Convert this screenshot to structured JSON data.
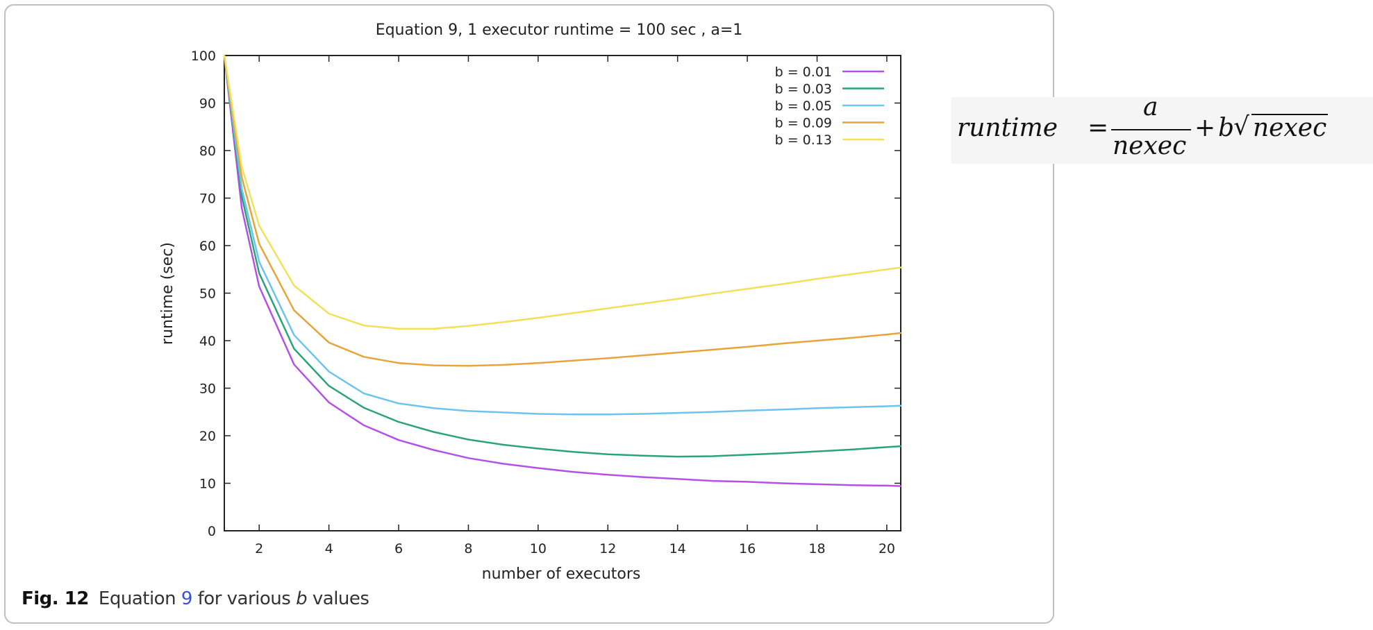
{
  "chart_data": {
    "type": "line",
    "title": "Equation 9, 1 executor runtime = 100 sec , a=1",
    "xlabel": "number of executors",
    "ylabel": "runtime (sec)",
    "xlim": [
      1,
      20.4
    ],
    "ylim": [
      0,
      100
    ],
    "xticks": [
      2,
      4,
      6,
      8,
      10,
      12,
      14,
      16,
      18,
      20
    ],
    "yticks": [
      0,
      10,
      20,
      30,
      40,
      50,
      60,
      70,
      80,
      90,
      100
    ],
    "grid": false,
    "legend_position": "top-right",
    "formula": "runtime = a/nexec + b√nexec",
    "series": [
      {
        "name": "b = 0.01",
        "color": "#b550e6",
        "x": [
          1,
          1.5,
          2,
          3,
          4,
          5,
          6,
          7,
          8,
          9,
          10,
          11,
          12,
          13,
          14,
          15,
          16,
          17,
          18,
          19,
          20,
          20.4
        ],
        "y": [
          100,
          67.9,
          51.4,
          35.0,
          27.0,
          22.2,
          19.1,
          17.0,
          15.3,
          14.1,
          13.2,
          12.4,
          11.8,
          11.3,
          10.9,
          10.5,
          10.3,
          10.0,
          9.8,
          9.6,
          9.5,
          9.4
        ]
      },
      {
        "name": "b = 0.03",
        "color": "#2aa37a",
        "x": [
          1,
          1.5,
          2,
          3,
          4,
          5,
          6,
          7,
          8,
          9,
          10,
          11,
          12,
          13,
          14,
          15,
          16,
          17,
          18,
          19,
          20,
          20.4
        ],
        "y": [
          100,
          70.4,
          54.2,
          38.3,
          30.5,
          25.9,
          22.9,
          20.8,
          19.2,
          18.1,
          17.3,
          16.6,
          16.1,
          15.8,
          15.6,
          15.7,
          16.0,
          16.3,
          16.7,
          17.1,
          17.6,
          17.8
        ]
      },
      {
        "name": "b = 0.05",
        "color": "#6cc3f0",
        "x": [
          1,
          1.5,
          2,
          3,
          4,
          5,
          6,
          7,
          8,
          9,
          10,
          11,
          12,
          13,
          14,
          15,
          16,
          17,
          18,
          19,
          20,
          20.4
        ],
        "y": [
          100,
          72.0,
          56.6,
          41.2,
          33.5,
          28.9,
          26.8,
          25.8,
          25.2,
          24.9,
          24.6,
          24.5,
          24.5,
          24.6,
          24.8,
          25.0,
          25.3,
          25.5,
          25.8,
          26.0,
          26.2,
          26.3
        ]
      },
      {
        "name": "b = 0.09",
        "color": "#e8a33a",
        "x": [
          1,
          1.5,
          2,
          3,
          4,
          5,
          6,
          7,
          8,
          9,
          10,
          11,
          12,
          13,
          14,
          15,
          16,
          17,
          18,
          19,
          20,
          20.4
        ],
        "y": [
          100,
          74.4,
          60.4,
          46.4,
          39.6,
          36.6,
          35.3,
          34.8,
          34.7,
          34.9,
          35.3,
          35.8,
          36.3,
          36.9,
          37.5,
          38.1,
          38.7,
          39.4,
          40.0,
          40.6,
          41.3,
          41.6
        ]
      },
      {
        "name": "b = 0.13",
        "color": "#f2e05a",
        "x": [
          1,
          1.5,
          2,
          3,
          4,
          5,
          6,
          7,
          8,
          9,
          10,
          11,
          12,
          13,
          14,
          15,
          16,
          17,
          18,
          19,
          20,
          20.4
        ],
        "y": [
          100,
          76.6,
          64.2,
          51.6,
          45.7,
          43.2,
          42.5,
          42.5,
          43.1,
          43.9,
          44.8,
          45.8,
          46.8,
          47.8,
          48.8,
          49.9,
          50.9,
          51.9,
          53.0,
          54.0,
          55.0,
          55.4
        ]
      }
    ]
  },
  "caption": {
    "fig_label": "Fig. 12",
    "text_before": "Equation ",
    "eq_ref": "9",
    "text_mid": " for various ",
    "b_var": "b",
    "text_after": " values"
  },
  "formula_parts": {
    "lhs": "runtime",
    "equals": "=",
    "numerator": "a",
    "denominator": "nexec",
    "plus": "+",
    "coef": "b",
    "sqrt_symbol": "√",
    "radicand": "nexec"
  }
}
